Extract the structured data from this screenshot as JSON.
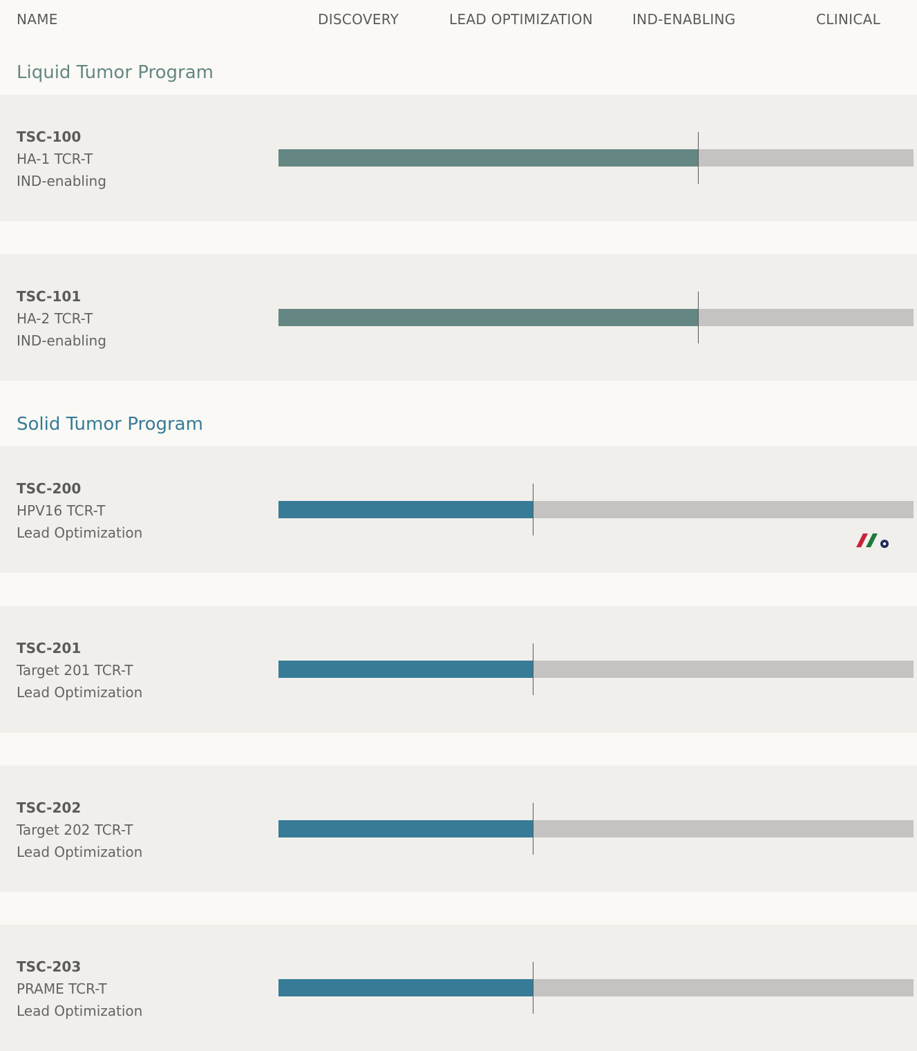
{
  "header": {
    "columns": [
      "NAME",
      "DISCOVERY",
      "LEAD OPTIMIZATION",
      "IND-ENABLING",
      "CLINICAL"
    ]
  },
  "colors": {
    "liquid": "#648783",
    "solid": "#377b97",
    "track": "#c4c3c1"
  },
  "chart_data": {
    "type": "bar",
    "stages": [
      "DISCOVERY",
      "LEAD OPTIMIZATION",
      "IND-ENABLING",
      "CLINICAL"
    ],
    "groups": [
      {
        "title": "Liquid Tumor Program",
        "color_key": "liquid",
        "programs": [
          {
            "code": "TSC-100",
            "name": "HA-1 TCR-T",
            "stage": "IND-enabling",
            "progress": 0.66
          },
          {
            "code": "TSC-101",
            "name": "HA-2 TCR-T",
            "stage": "IND-enabling",
            "progress": 0.66
          }
        ]
      },
      {
        "title": "Solid Tumor Program",
        "color_key": "solid",
        "programs": [
          {
            "code": "TSC-200",
            "name": "HPV16 TCR-T",
            "stage": "Lead Optimization",
            "progress": 0.4
          },
          {
            "code": "TSC-201",
            "name": "Target 201 TCR-T",
            "stage": "Lead Optimization",
            "progress": 0.4
          },
          {
            "code": "TSC-202",
            "name": "Target 202 TCR-T",
            "stage": "Lead Optimization",
            "progress": 0.4
          },
          {
            "code": "TSC-203",
            "name": "PRAME TCR-T",
            "stage": "Lead Optimization",
            "progress": 0.4
          }
        ]
      }
    ]
  }
}
